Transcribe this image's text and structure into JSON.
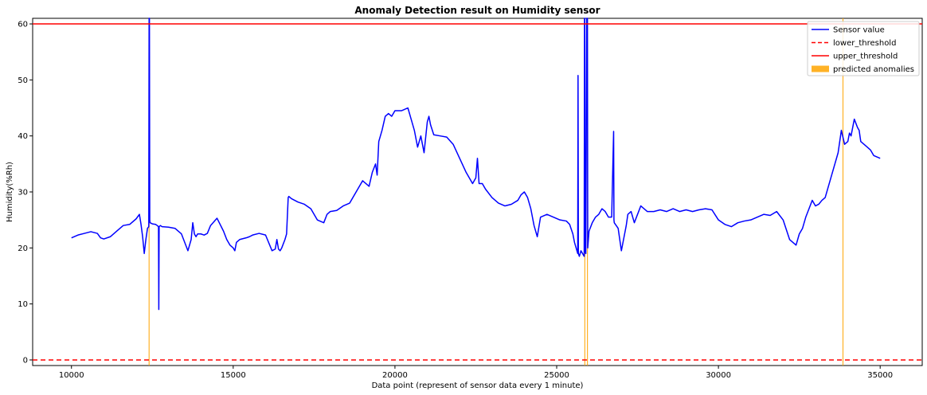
{
  "chart_data": {
    "type": "line",
    "title": "Anomaly Detection result on Humidity sensor",
    "xlabel": "Data point (represent of sensor data every 1 minute)",
    "ylabel": "Humidity(%Rh)",
    "xlim": [
      8800,
      36300
    ],
    "ylim": [
      -1,
      61
    ],
    "xticks": [
      10000,
      15000,
      20000,
      25000,
      30000,
      35000
    ],
    "yticks": [
      0,
      10,
      20,
      30,
      40,
      50,
      60
    ],
    "grid": false,
    "legend_position": "top-right",
    "colors": {
      "sensor": "#0000ff",
      "lower": "#ff0000",
      "upper": "#ff0000",
      "anomaly": "#ffa500"
    },
    "series": [
      {
        "name": "Sensor value",
        "x": [
          10000,
          10200,
          10400,
          10600,
          10800,
          10900,
          11000,
          11200,
          11400,
          11600,
          11800,
          12000,
          12100,
          12150,
          12200,
          12250,
          12300,
          12350,
          12390,
          12400,
          12410,
          12420,
          12430,
          12500,
          12600,
          12650,
          12690,
          12700,
          12710,
          12750,
          12800,
          13000,
          13200,
          13400,
          13600,
          13700,
          13750,
          13800,
          13850,
          13900,
          14000,
          14100,
          14200,
          14300,
          14500,
          14700,
          14800,
          14900,
          15000,
          15050,
          15100,
          15200,
          15400,
          15500,
          15600,
          15800,
          16000,
          16200,
          16300,
          16350,
          16400,
          16450,
          16500,
          16600,
          16650,
          16700,
          16720,
          16800,
          17000,
          17200,
          17400,
          17600,
          17800,
          17900,
          18000,
          18200,
          18400,
          18600,
          18800,
          19000,
          19200,
          19300,
          19400,
          19450,
          19500,
          19600,
          19700,
          19800,
          19900,
          20000,
          20200,
          20400,
          20500,
          20600,
          20700,
          20800,
          20900,
          21000,
          21050,
          21100,
          21200,
          21400,
          21600,
          21800,
          22000,
          22200,
          22400,
          22500,
          22550,
          22600,
          22700,
          22800,
          23000,
          23200,
          23400,
          23600,
          23800,
          23900,
          24000,
          24100,
          24200,
          24300,
          24400,
          24500,
          24700,
          24900,
          25100,
          25300,
          25400,
          25500,
          25550,
          25600,
          25650,
          25660,
          25670,
          25700,
          25750,
          25800,
          25850,
          25860,
          25870,
          25880,
          25900,
          25930,
          25940,
          25950,
          25960,
          26000,
          26100,
          26200,
          26300,
          26400,
          26500,
          26600,
          26700,
          26760,
          26770,
          26780,
          26900,
          27000,
          27100,
          27150,
          27200,
          27300,
          27400,
          27600,
          27800,
          28000,
          28200,
          28400,
          28600,
          28800,
          29000,
          29200,
          29400,
          29600,
          29800,
          30000,
          30200,
          30400,
          30600,
          30800,
          31000,
          31200,
          31400,
          31600,
          31800,
          32000,
          32200,
          32400,
          32500,
          32600,
          32700,
          32800,
          32900,
          33000,
          33100,
          33200,
          33300,
          33500,
          33700,
          33800,
          33900,
          34000,
          34050,
          34100,
          34200,
          34300,
          34350,
          34400,
          34500,
          34600,
          34700,
          34800,
          35000
        ],
        "values": [
          21.8,
          22.3,
          22.6,
          22.9,
          22.6,
          21.8,
          21.6,
          22.0,
          23.0,
          24.0,
          24.2,
          25.2,
          26.0,
          24.2,
          22.0,
          19.0,
          21.5,
          23.5,
          23.8,
          61.0,
          61.0,
          25.0,
          24.5,
          24.3,
          24.2,
          24.0,
          23.8,
          9.0,
          23.8,
          24.0,
          23.8,
          23.7,
          23.5,
          22.5,
          19.5,
          21.5,
          24.5,
          22.5,
          22.0,
          22.5,
          22.5,
          22.3,
          22.6,
          24.0,
          25.3,
          23.0,
          21.5,
          20.5,
          20.0,
          19.5,
          21.0,
          21.5,
          21.8,
          22.0,
          22.3,
          22.6,
          22.3,
          19.5,
          19.8,
          21.5,
          19.8,
          19.5,
          20.0,
          21.5,
          22.5,
          29.0,
          29.2,
          28.8,
          28.2,
          27.8,
          27.0,
          25.0,
          24.5,
          26.0,
          26.5,
          26.7,
          27.5,
          28.0,
          30.0,
          32.0,
          31.0,
          33.5,
          35.0,
          33.0,
          39.0,
          41.0,
          43.5,
          44.0,
          43.5,
          44.5,
          44.5,
          45.0,
          43.0,
          41.0,
          38.0,
          40.0,
          37.0,
          42.5,
          43.5,
          42.0,
          40.2,
          40.0,
          39.8,
          38.5,
          36.0,
          33.5,
          31.5,
          32.5,
          36.0,
          31.5,
          31.5,
          30.5,
          29.0,
          28.0,
          27.5,
          27.8,
          28.5,
          29.5,
          30.0,
          29.0,
          27.0,
          24.0,
          22.0,
          25.5,
          26.0,
          25.5,
          25.0,
          24.8,
          24.2,
          22.5,
          21.0,
          20.0,
          19.0,
          50.8,
          19.0,
          18.5,
          19.5,
          19.0,
          18.5,
          61.0,
          61.0,
          19.5,
          19.0,
          61.0,
          61.0,
          61.0,
          20.0,
          23.0,
          24.5,
          25.5,
          26.0,
          27.0,
          26.5,
          25.5,
          25.5,
          40.8,
          25.0,
          24.5,
          23.5,
          19.5,
          22.5,
          24.0,
          26.0,
          26.5,
          24.5,
          27.5,
          26.5,
          26.5,
          26.8,
          26.5,
          27.0,
          26.5,
          26.8,
          26.5,
          26.8,
          27.0,
          26.8,
          25.0,
          24.2,
          23.8,
          24.5,
          24.8,
          25.0,
          25.5,
          26.0,
          25.8,
          26.5,
          25.0,
          21.5,
          20.5,
          22.5,
          23.5,
          25.5,
          27.0,
          28.5,
          27.5,
          27.8,
          28.5,
          29.0,
          33.0,
          37.0,
          41.0,
          38.5,
          39.0,
          40.5,
          40.0,
          43.0,
          41.5,
          41.0,
          39.0,
          38.5,
          38.0,
          37.5,
          36.5,
          36.0
        ]
      },
      {
        "name": "lower_threshold",
        "value": 0
      },
      {
        "name": "upper_threshold",
        "value": 60
      },
      {
        "name": "predicted anomalies",
        "x": [
          12400,
          25870,
          25950,
          33850
        ]
      }
    ]
  }
}
